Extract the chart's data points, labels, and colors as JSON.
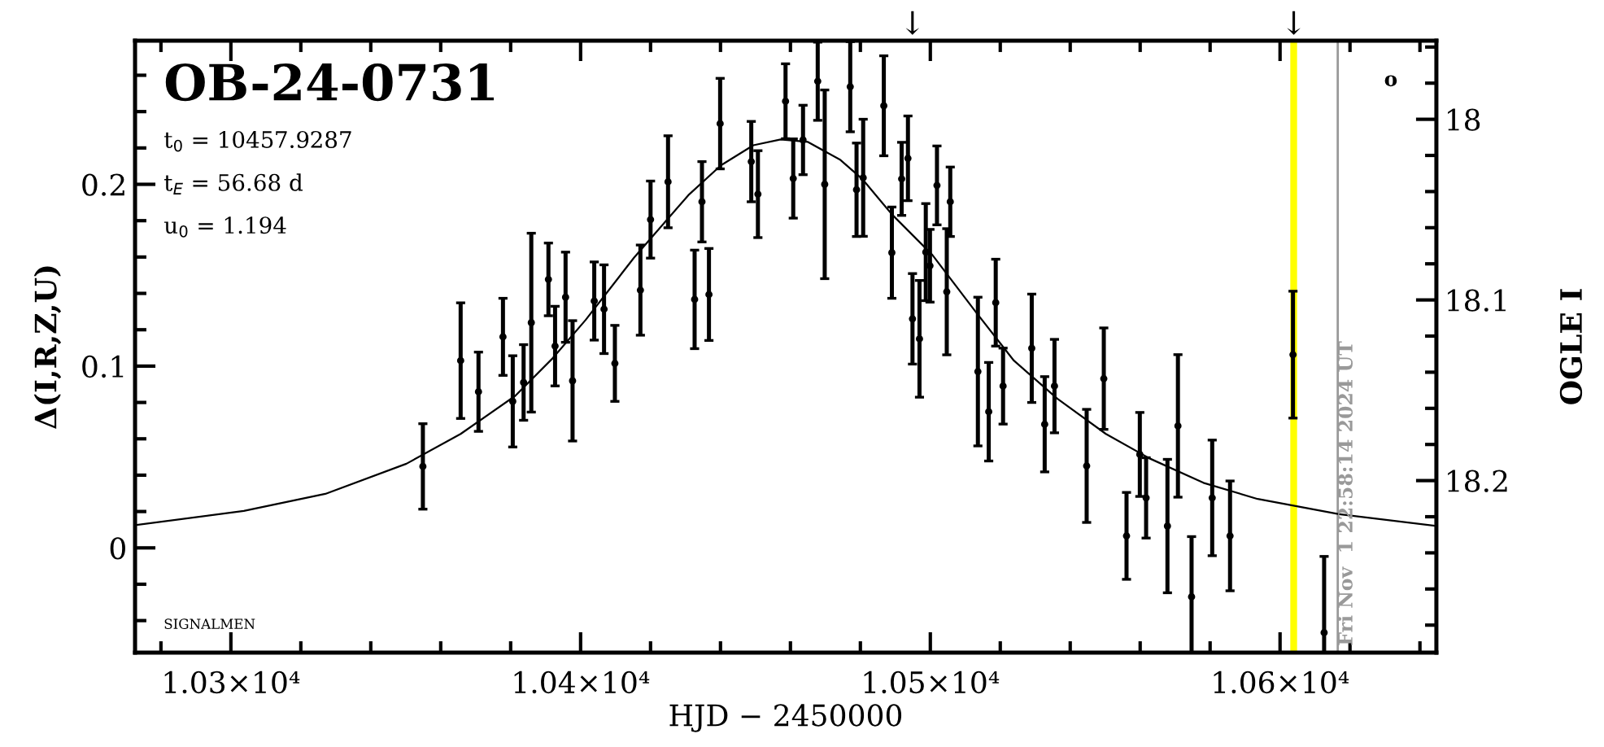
{
  "chart_data": {
    "type": "scatter",
    "title": "OB-24-0731",
    "xlabel": "HJD − 2450000",
    "ylabel": "Δ(I,R,Z,U)",
    "y2label": "OGLE I",
    "annotations": [
      "t$_{0}$ = 10457.9287",
      "t$_{E}$ = 56.68 d",
      "u$_{0}$ = 1.194",
      "SIGNALMEN",
      "o",
      "↓",
      "↓",
      "Fri Nov  1 22:58:14 2024 UT"
    ],
    "xlim": [
      10272.6,
      10644.7
    ],
    "ylim": [
      -0.0576,
      0.279
    ],
    "y2lim": [
      18.2952,
      17.9565
    ],
    "xticks": [
      {
        "value": 10300,
        "label": "1.03×10⁴"
      },
      {
        "value": 10400,
        "label": "1.04×10⁴"
      },
      {
        "value": 10500,
        "label": "1.05×10⁴"
      },
      {
        "value": 10600,
        "label": "1.06×10⁴"
      }
    ],
    "yticks": [
      0,
      0.1,
      0.2
    ],
    "y2ticks": [
      18,
      18.1,
      18.2
    ],
    "grid": false,
    "legend": false,
    "marker": "circle",
    "ref_lines": [
      {
        "axis": "x",
        "value": 10603.9,
        "color": "#ffff00"
      },
      {
        "axis": "x",
        "value": 10616.5,
        "color": "#999999"
      }
    ],
    "series": [
      {
        "color": "#000000",
        "x": [
          10354.9,
          10365.7,
          10370.8,
          10377.8,
          10380.6,
          10383.7,
          10385.9,
          10390.8,
          10392.7,
          10395.7,
          10397.7,
          10403.9,
          10406.7,
          10409.8,
          10417.1,
          10420.0,
          10425.0,
          10432.6,
          10434.7,
          10436.7,
          10439.9,
          10448.8,
          10450.7,
          10458.6,
          10460.8,
          10463.6,
          10467.8,
          10469.8,
          10477.1,
          10478.9,
          10480.8,
          10486.7,
          10489.0,
          10491.8,
          10493.6,
          10494.9,
          10496.9,
          10498.7,
          10499.9,
          10501.9,
          10504.7,
          10505.7,
          10513.6,
          10516.7,
          10518.7,
          10520.8,
          10529.0,
          10532.7,
          10535.5,
          10544.7,
          10549.6,
          10556.1,
          10559.9,
          10561.7,
          10567.8,
          10570.8,
          10574.7,
          10580.6,
          10585.7,
          10603.7,
          10612.6
        ],
        "values": [
          0.0448,
          0.103,
          0.0859,
          0.1161,
          0.0806,
          0.091,
          0.1239,
          0.1477,
          0.111,
          0.1379,
          0.0919,
          0.1358,
          0.1313,
          0.1015,
          0.1418,
          0.1806,
          0.2014,
          0.1367,
          0.1904,
          0.1394,
          0.2334,
          0.2125,
          0.1946,
          0.2457,
          0.2032,
          0.2244,
          0.2567,
          0.2,
          0.2537,
          0.197,
          0.2036,
          0.2432,
          0.1624,
          0.203,
          0.2143,
          0.126,
          0.115,
          0.1627,
          0.1552,
          0.1994,
          0.1409,
          0.1904,
          0.097,
          0.0749,
          0.1349,
          0.089,
          0.1098,
          0.068,
          0.089,
          0.0451,
          0.0931,
          0.0066,
          0.0514,
          0.0275,
          0.012,
          0.0671,
          -0.0269,
          0.0275,
          0.0066,
          0.1063,
          -0.0466
        ],
        "errors": [
          0.0235,
          0.0318,
          0.0218,
          0.0212,
          0.0251,
          0.0208,
          0.0492,
          0.02,
          0.0219,
          0.0248,
          0.0331,
          0.0215,
          0.0244,
          0.0209,
          0.0248,
          0.0212,
          0.0253,
          0.0271,
          0.0221,
          0.0253,
          0.0249,
          0.0221,
          0.0239,
          0.0206,
          0.0218,
          0.0191,
          0.0215,
          0.0519,
          0.0248,
          0.0257,
          0.0322,
          0.0275,
          0.0251,
          0.0201,
          0.0233,
          0.0249,
          0.0321,
          0.0267,
          0.02,
          0.0217,
          0.0347,
          0.0191,
          0.0409,
          0.0271,
          0.0239,
          0.0209,
          0.0298,
          0.0262,
          0.0257,
          0.0311,
          0.0279,
          0.0239,
          0.0231,
          0.0221,
          0.0367,
          0.0392,
          [
            -0.0576,
            0.0062
          ],
          0.0318,
          0.0302,
          0.0349,
          [
            -0.0576,
            -0.0047
          ]
        ]
      },
      {
        "type": "line",
        "color": "#000000",
        "marker": "none",
        "x": [
          10272.6,
          10303.7,
          10327.0,
          10350.2,
          10365.7,
          10381.3,
          10392.1,
          10401.4,
          10415.3,
          10430.8,
          10440.1,
          10449.4,
          10457.2,
          10465.0,
          10474.3,
          10480.5,
          10489.0,
          10500.6,
          10513.0,
          10523.9,
          10536.3,
          10550.2,
          10562.7,
          10578.1,
          10593.6,
          10616.9,
          10644.7
        ],
        "values": [
          0.0125,
          0.0203,
          0.0297,
          0.0463,
          0.0627,
          0.0836,
          0.1045,
          0.1253,
          0.1597,
          0.194,
          0.2104,
          0.2215,
          0.2247,
          0.2233,
          0.2134,
          0.203,
          0.1835,
          0.1611,
          0.1298,
          0.103,
          0.0821,
          0.0627,
          0.0492,
          0.0358,
          0.0269,
          0.0185,
          0.012
        ]
      }
    ]
  }
}
